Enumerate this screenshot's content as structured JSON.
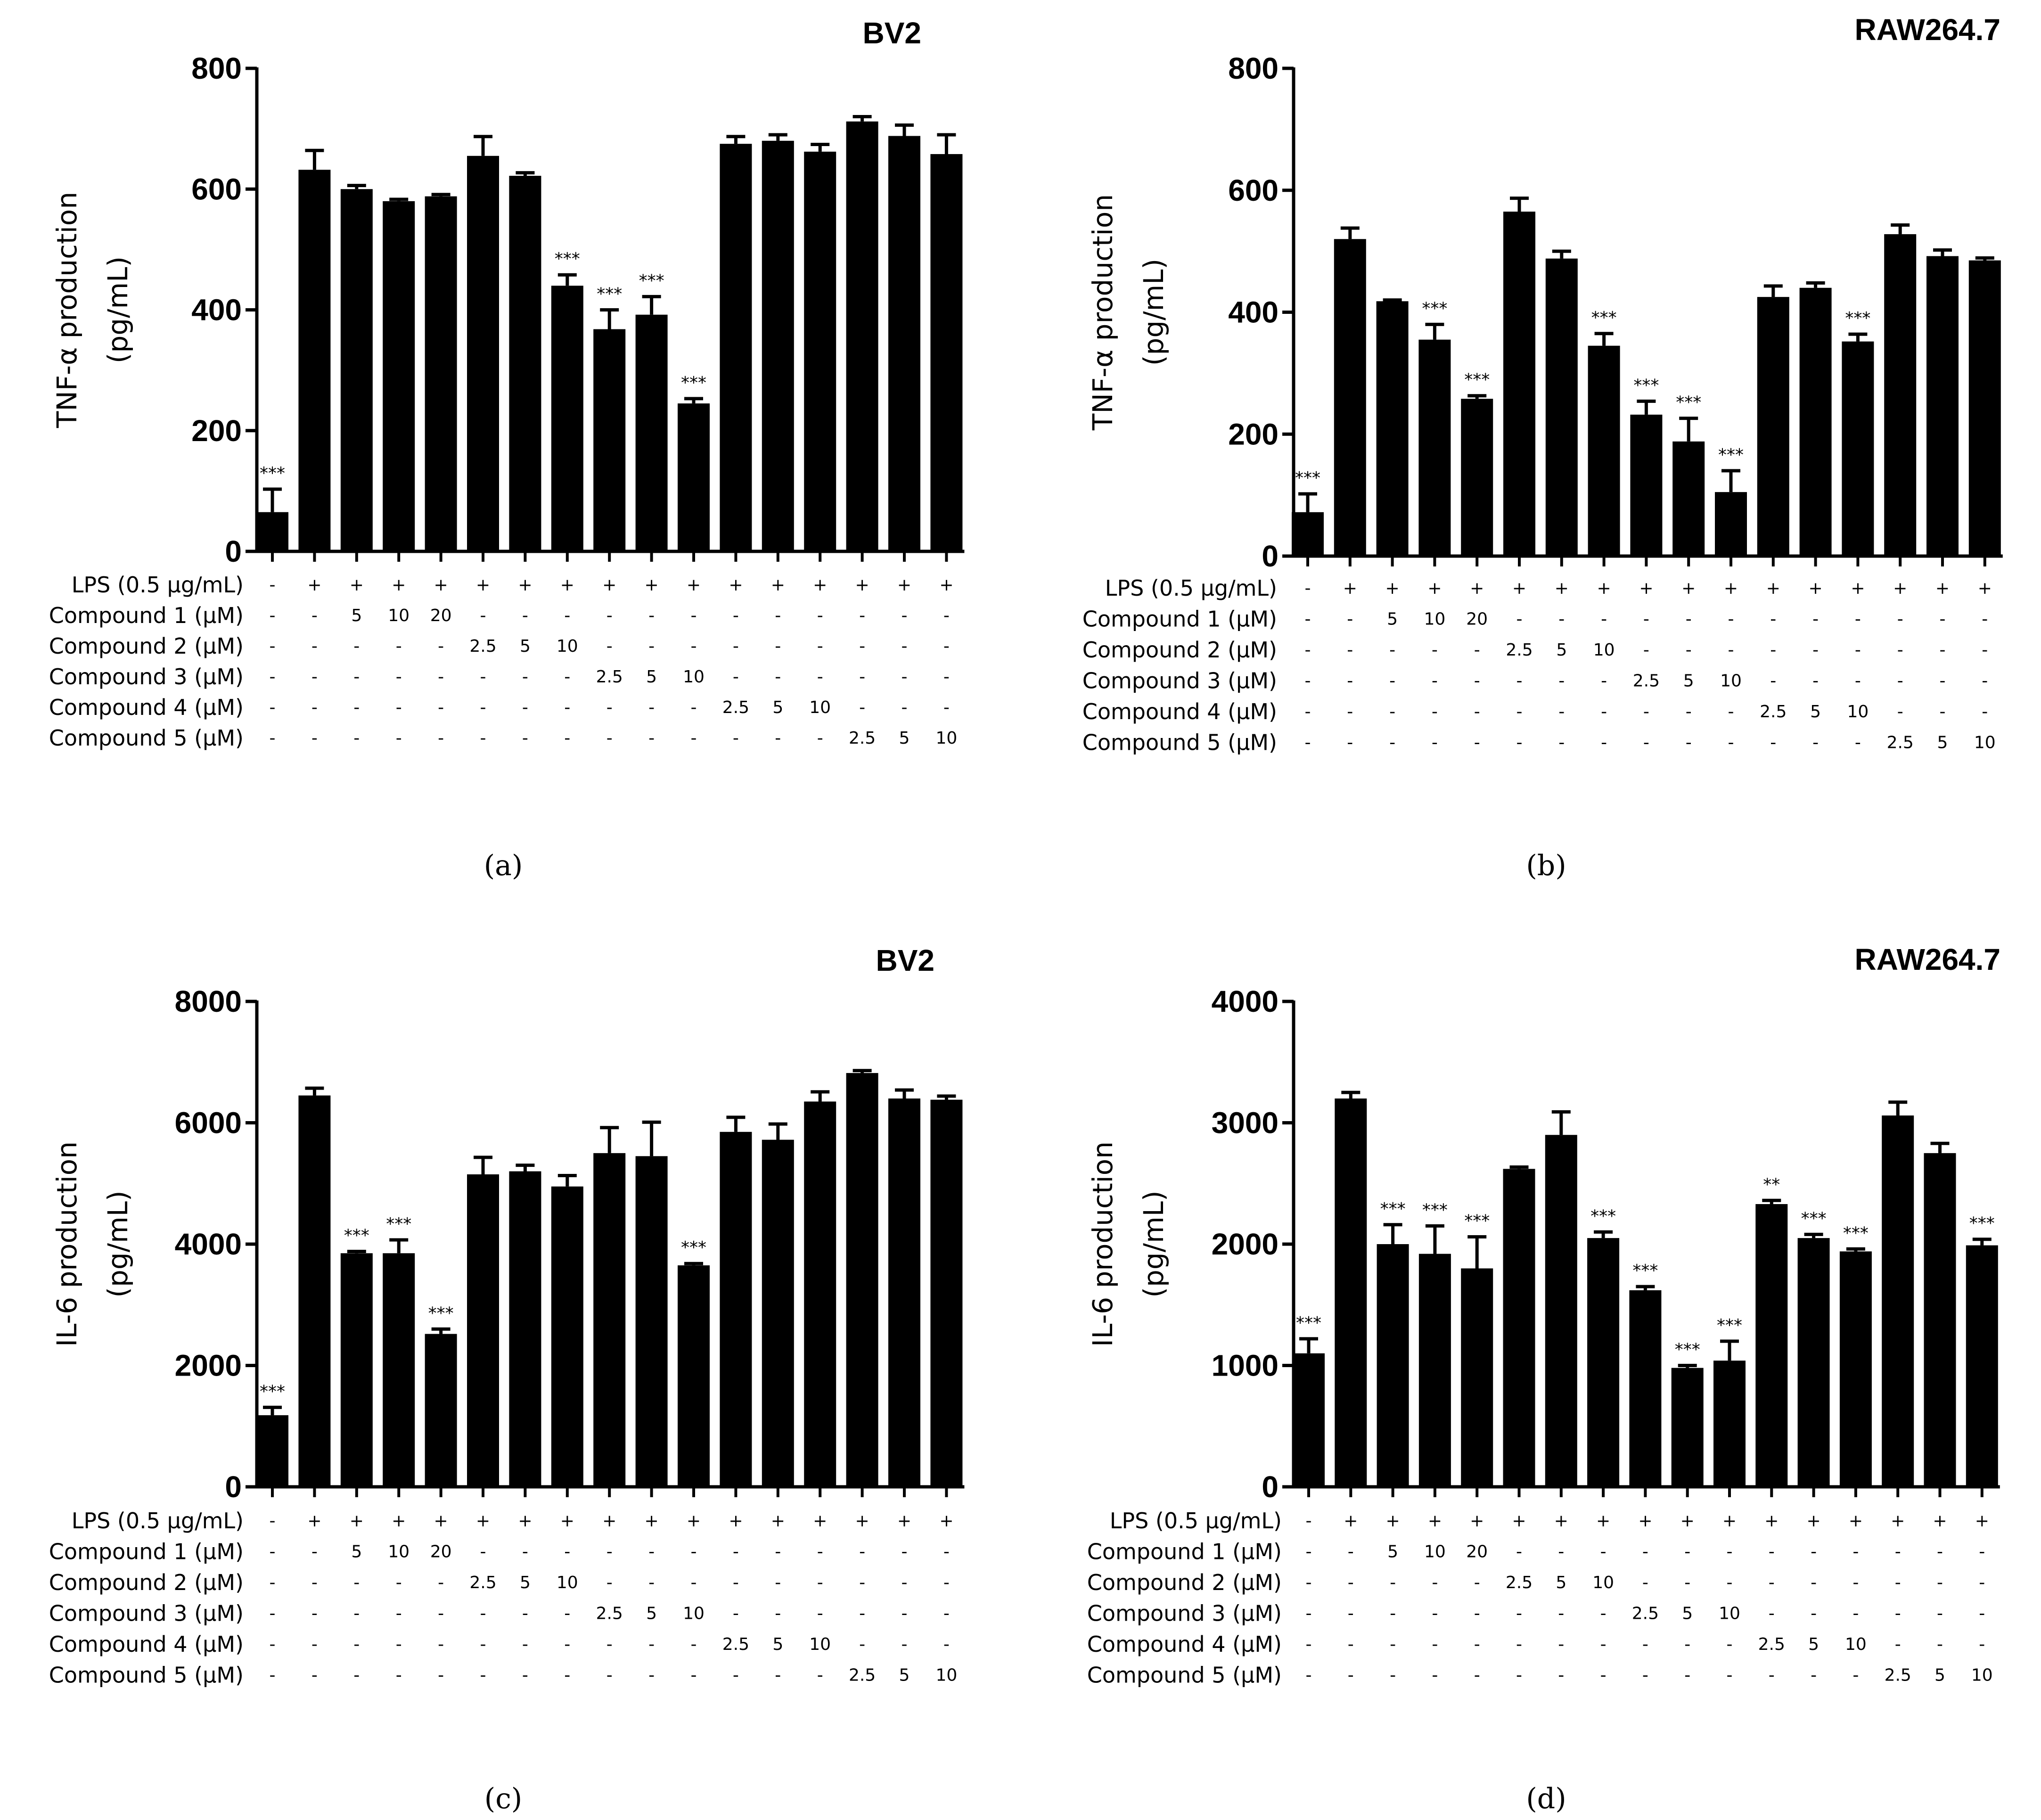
{
  "chart_data": [
    {
      "type": "bar",
      "panel": "(a)",
      "title": "BV2",
      "ylabel_line1": "TNF-α production",
      "ylabel_line2": "(pg/mL)",
      "ylim": [
        0,
        800
      ],
      "yticks": [
        "0",
        "200",
        "400",
        "600",
        "800"
      ],
      "values": [
        65,
        632,
        600,
        580,
        588,
        655,
        622,
        440,
        368,
        392,
        245,
        675,
        680,
        662,
        712,
        688,
        658
      ],
      "errors": [
        38,
        32,
        6,
        3,
        3,
        32,
        5,
        18,
        32,
        30,
        8,
        12,
        10,
        12,
        8,
        18,
        32
      ],
      "significance": [
        "***",
        "",
        "",
        "",
        "",
        "",
        "",
        "***",
        "***",
        "***",
        "***",
        "",
        "",
        "",
        "",
        "",
        ""
      ],
      "rows": [
        {
          "label": "LPS (0.5 μg/mL)",
          "values": [
            "-",
            "+",
            "+",
            "+",
            "+",
            "+",
            "+",
            "+",
            "+",
            "+",
            "+",
            "+",
            "+",
            "+",
            "+",
            "+",
            "+"
          ]
        },
        {
          "label": "Compound 1 (μM)",
          "values": [
            "-",
            "-",
            "5",
            "10",
            "20",
            "-",
            "-",
            "-",
            "-",
            "-",
            "-",
            "-",
            "-",
            "-",
            "-",
            "-",
            "-"
          ]
        },
        {
          "label": "Compound 2 (μM)",
          "values": [
            "-",
            "-",
            "-",
            "-",
            "-",
            "2.5",
            "5",
            "10",
            "-",
            "-",
            "-",
            "-",
            "-",
            "-",
            "-",
            "-",
            "-"
          ]
        },
        {
          "label": "Compound 3 (μM)",
          "values": [
            "-",
            "-",
            "-",
            "-",
            "-",
            "-",
            "-",
            "-",
            "2.5",
            "5",
            "10",
            "-",
            "-",
            "-",
            "-",
            "-",
            "-"
          ]
        },
        {
          "label": "Compound 4 (μM)",
          "values": [
            "-",
            "-",
            "-",
            "-",
            "-",
            "-",
            "-",
            "-",
            "-",
            "-",
            "-",
            "2.5",
            "5",
            "10",
            "-",
            "-",
            "-"
          ]
        },
        {
          "label": "Compound 5 (μM)",
          "values": [
            "-",
            "-",
            "-",
            "-",
            "-",
            "-",
            "-",
            "-",
            "-",
            "-",
            "-",
            "-",
            "-",
            "-",
            "2.5",
            "5",
            "10"
          ]
        }
      ]
    },
    {
      "type": "bar",
      "panel": "(b)",
      "title": "RAW264.7",
      "ylabel_line1": "TNF-α production",
      "ylabel_line2": "(pg/mL)",
      "ylim": [
        0,
        800
      ],
      "yticks": [
        "0",
        "200",
        "400",
        "600",
        "800"
      ],
      "values": [
        72,
        520,
        418,
        355,
        258,
        565,
        488,
        345,
        232,
        188,
        105,
        425,
        440,
        352,
        528,
        492,
        485
      ],
      "errors": [
        30,
        18,
        2,
        25,
        5,
        22,
        12,
        20,
        22,
        38,
        35,
        18,
        8,
        12,
        15,
        10,
        4
      ],
      "significance": [
        "***",
        "",
        "",
        "***",
        "***",
        "",
        "",
        "***",
        "***",
        "***",
        "***",
        "",
        "",
        "***",
        "",
        "",
        ""
      ],
      "rows": [
        {
          "label": "LPS (0.5 μg/mL)",
          "values": [
            "-",
            "+",
            "+",
            "+",
            "+",
            "+",
            "+",
            "+",
            "+",
            "+",
            "+",
            "+",
            "+",
            "+",
            "+",
            "+",
            "+"
          ]
        },
        {
          "label": "Compound 1 (μM)",
          "values": [
            "-",
            "-",
            "5",
            "10",
            "20",
            "-",
            "-",
            "-",
            "-",
            "-",
            "-",
            "-",
            "-",
            "-",
            "-",
            "-",
            "-"
          ]
        },
        {
          "label": "Compound 2 (μM)",
          "values": [
            "-",
            "-",
            "-",
            "-",
            "-",
            "2.5",
            "5",
            "10",
            "-",
            "-",
            "-",
            "-",
            "-",
            "-",
            "-",
            "-",
            "-"
          ]
        },
        {
          "label": "Compound 3 (μM)",
          "values": [
            "-",
            "-",
            "-",
            "-",
            "-",
            "-",
            "-",
            "-",
            "2.5",
            "5",
            "10",
            "-",
            "-",
            "-",
            "-",
            "-",
            "-"
          ]
        },
        {
          "label": "Compound 4 (μM)",
          "values": [
            "-",
            "-",
            "-",
            "-",
            "-",
            "-",
            "-",
            "-",
            "-",
            "-",
            "-",
            "2.5",
            "5",
            "10",
            "-",
            "-",
            "-"
          ]
        },
        {
          "label": "Compound 5 (μM)",
          "values": [
            "-",
            "-",
            "-",
            "-",
            "-",
            "-",
            "-",
            "-",
            "-",
            "-",
            "-",
            "-",
            "-",
            "-",
            "2.5",
            "5",
            "10"
          ]
        }
      ]
    },
    {
      "type": "bar",
      "panel": "(c)",
      "title": "BV2",
      "ylabel_line1": "IL-6 production",
      "ylabel_line2": "(pg/mL)",
      "ylim": [
        0,
        8000
      ],
      "yticks": [
        "0",
        "2000",
        "4000",
        "6000",
        "8000"
      ],
      "values": [
        1180,
        6450,
        3850,
        3850,
        2520,
        5150,
        5200,
        4950,
        5500,
        5450,
        3650,
        5850,
        5720,
        6350,
        6820,
        6400,
        6380
      ],
      "errors": [
        130,
        120,
        30,
        220,
        80,
        280,
        100,
        180,
        420,
        560,
        30,
        240,
        260,
        160,
        40,
        140,
        60
      ],
      "significance": [
        "***",
        "",
        "***",
        "***",
        "***",
        "",
        "",
        "",
        "",
        "",
        "***",
        "",
        "",
        "",
        "",
        "",
        ""
      ],
      "rows": [
        {
          "label": "LPS (0.5 μg/mL)",
          "values": [
            "-",
            "+",
            "+",
            "+",
            "+",
            "+",
            "+",
            "+",
            "+",
            "+",
            "+",
            "+",
            "+",
            "+",
            "+",
            "+",
            "+"
          ]
        },
        {
          "label": "Compound 1 (μM)",
          "values": [
            "-",
            "-",
            "5",
            "10",
            "20",
            "-",
            "-",
            "-",
            "-",
            "-",
            "-",
            "-",
            "-",
            "-",
            "-",
            "-",
            "-"
          ]
        },
        {
          "label": "Compound 2 (μM)",
          "values": [
            "-",
            "-",
            "-",
            "-",
            "-",
            "2.5",
            "5",
            "10",
            "-",
            "-",
            "-",
            "-",
            "-",
            "-",
            "-",
            "-",
            "-"
          ]
        },
        {
          "label": "Compound 3 (μM)",
          "values": [
            "-",
            "-",
            "-",
            "-",
            "-",
            "-",
            "-",
            "-",
            "2.5",
            "5",
            "10",
            "-",
            "-",
            "-",
            "-",
            "-",
            "-"
          ]
        },
        {
          "label": "Compound 4 (μM)",
          "values": [
            "-",
            "-",
            "-",
            "-",
            "-",
            "-",
            "-",
            "-",
            "-",
            "-",
            "-",
            "2.5",
            "5",
            "10",
            "-",
            "-",
            "-"
          ]
        },
        {
          "label": "Compound 5 (μM)",
          "values": [
            "-",
            "-",
            "-",
            "-",
            "-",
            "-",
            "-",
            "-",
            "-",
            "-",
            "-",
            "-",
            "-",
            "-",
            "2.5",
            "5",
            "10"
          ]
        }
      ]
    },
    {
      "type": "bar",
      "panel": "(d)",
      "title": "RAW264.7",
      "ylabel_line1": "IL-6 production",
      "ylabel_line2": "(pg/mL)",
      "ylim": [
        0,
        4000
      ],
      "yticks": [
        "0",
        "1000",
        "2000",
        "3000",
        "4000"
      ],
      "values": [
        1100,
        3200,
        2000,
        1920,
        1800,
        2620,
        2900,
        2050,
        1620,
        980,
        1040,
        2330,
        2050,
        1940,
        3060,
        2750,
        1990
      ],
      "errors": [
        120,
        50,
        160,
        230,
        260,
        15,
        190,
        50,
        30,
        20,
        160,
        30,
        30,
        20,
        110,
        80,
        50
      ],
      "significance": [
        "***",
        "",
        "***",
        "***",
        "***",
        "",
        "",
        "***",
        "***",
        "***",
        "***",
        "**",
        "***",
        "***",
        "",
        "",
        "***"
      ],
      "rows": [
        {
          "label": "LPS (0.5 μg/mL)",
          "values": [
            "-",
            "+",
            "+",
            "+",
            "+",
            "+",
            "+",
            "+",
            "+",
            "+",
            "+",
            "+",
            "+",
            "+",
            "+",
            "+",
            "+"
          ]
        },
        {
          "label": "Compound 1 (μM)",
          "values": [
            "-",
            "-",
            "5",
            "10",
            "20",
            "-",
            "-",
            "-",
            "-",
            "-",
            "-",
            "-",
            "-",
            "-",
            "-",
            "-",
            "-"
          ]
        },
        {
          "label": "Compound 2 (μM)",
          "values": [
            "-",
            "-",
            "-",
            "-",
            "-",
            "2.5",
            "5",
            "10",
            "-",
            "-",
            "-",
            "-",
            "-",
            "-",
            "-",
            "-",
            "-"
          ]
        },
        {
          "label": "Compound 3 (μM)",
          "values": [
            "-",
            "-",
            "-",
            "-",
            "-",
            "-",
            "-",
            "-",
            "2.5",
            "5",
            "10",
            "-",
            "-",
            "-",
            "-",
            "-",
            "-"
          ]
        },
        {
          "label": "Compound 4 (μM)",
          "values": [
            "-",
            "-",
            "-",
            "-",
            "-",
            "-",
            "-",
            "-",
            "-",
            "-",
            "-",
            "2.5",
            "5",
            "10",
            "-",
            "-",
            "-"
          ]
        },
        {
          "label": "Compound 5 (μM)",
          "values": [
            "-",
            "-",
            "-",
            "-",
            "-",
            "-",
            "-",
            "-",
            "-",
            "-",
            "-",
            "-",
            "-",
            "-",
            "2.5",
            "5",
            "10"
          ]
        }
      ]
    }
  ]
}
